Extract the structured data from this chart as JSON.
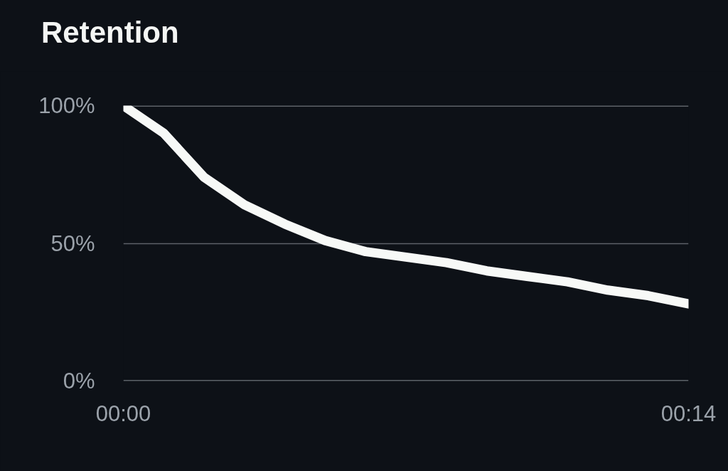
{
  "chart_data": {
    "type": "line",
    "title": "Retention",
    "x": [
      0,
      1,
      2,
      3,
      4,
      5,
      6,
      7,
      8,
      9,
      10,
      11,
      12,
      13,
      14
    ],
    "series": [
      {
        "color": "#f7f9f7",
        "values": [
          100,
          90,
          74,
          64,
          57,
          51,
          47,
          45,
          43,
          40,
          38,
          36,
          33,
          31,
          28
        ]
      }
    ],
    "xlim": [
      0,
      14
    ],
    "ylim": [
      0,
      100
    ],
    "xticks": [
      {
        "value": 0,
        "label": "00:00"
      },
      {
        "value": 14,
        "label": "00:14"
      }
    ],
    "yticks": [
      {
        "value": 0,
        "label": "0%"
      },
      {
        "value": 50,
        "label": "50%"
      },
      {
        "value": 100,
        "label": "100%"
      }
    ],
    "grid": "y",
    "line_style": "solid"
  }
}
